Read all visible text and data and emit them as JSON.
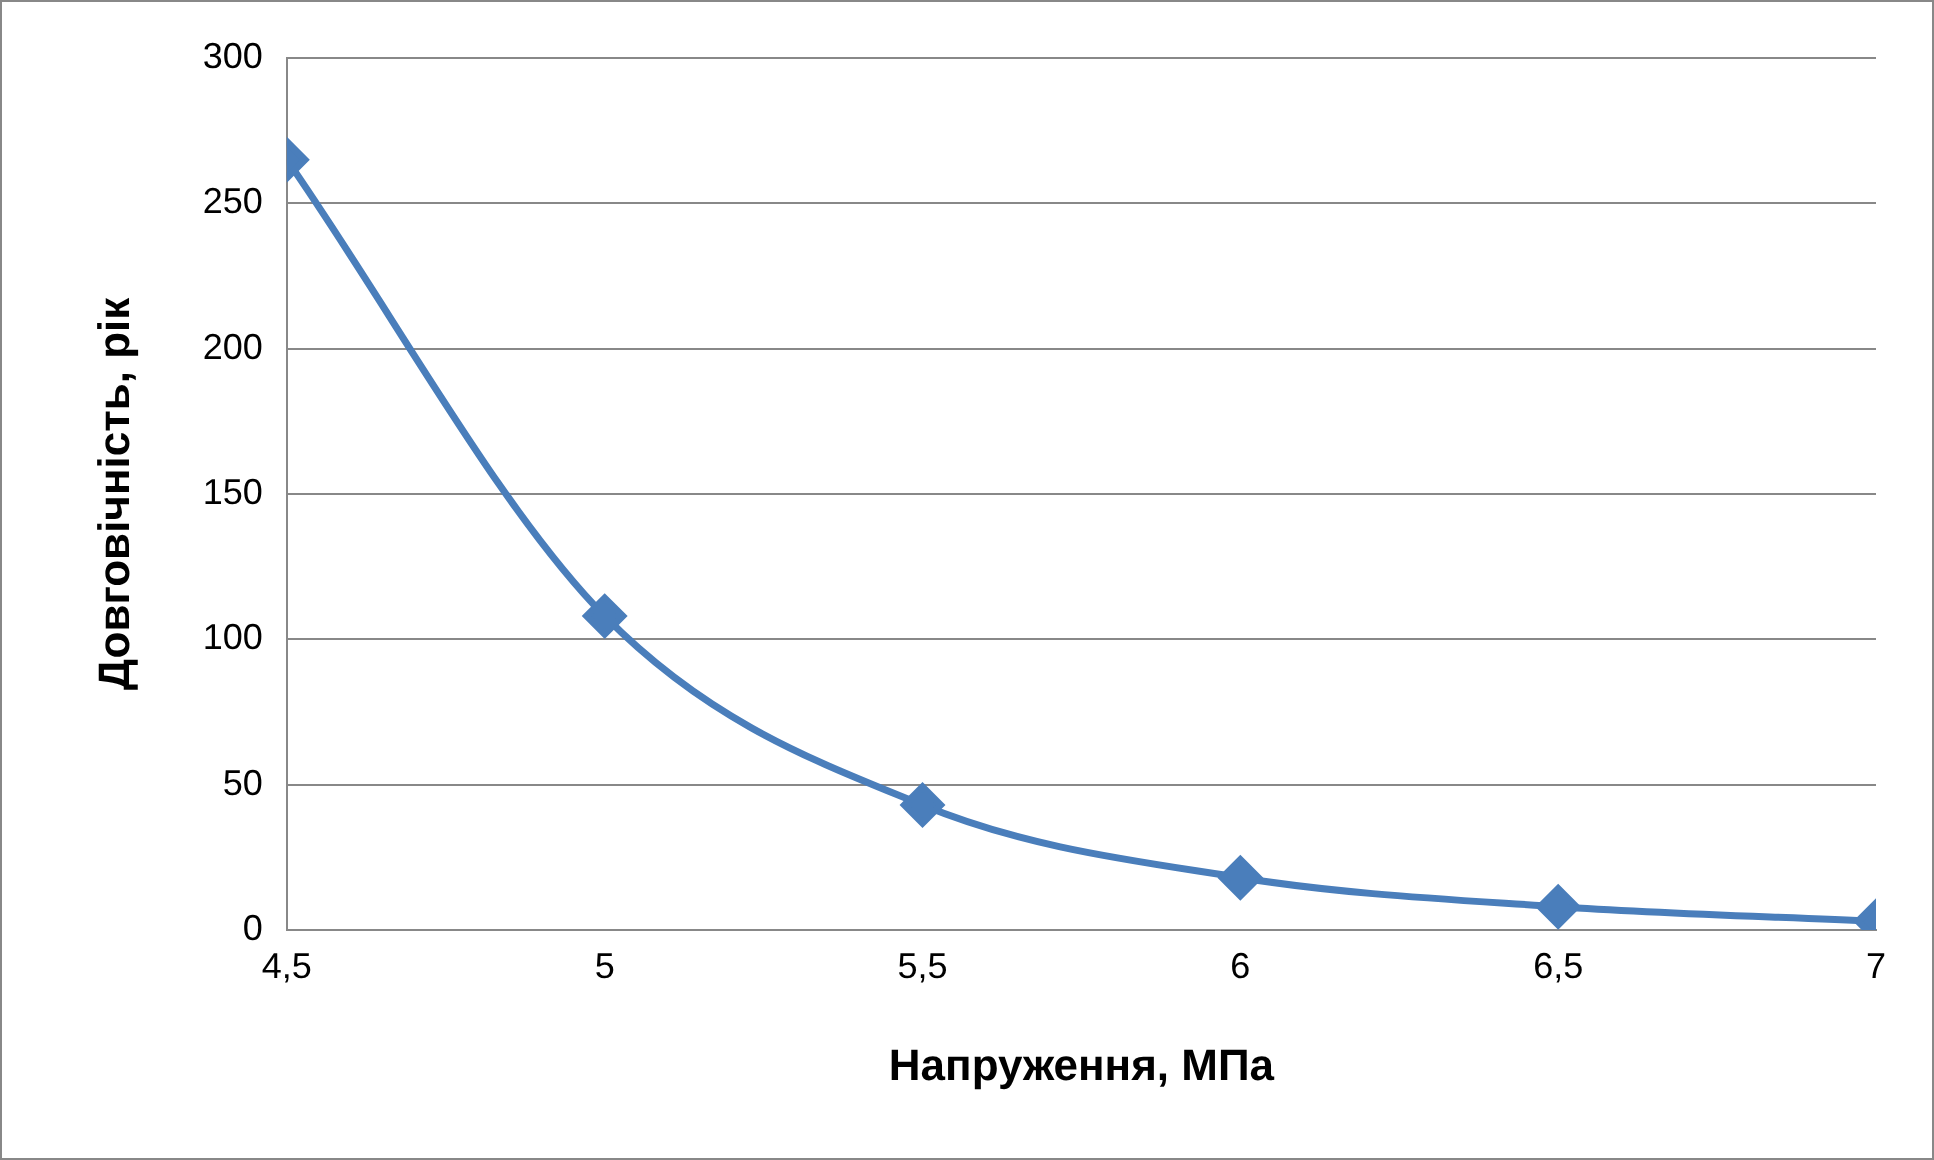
{
  "chart_data": {
    "type": "line",
    "xlabel": "Напруження, МПа",
    "ylabel": "Довговічність, рік",
    "x": [
      4.5,
      5,
      5.5,
      6,
      6.5,
      7
    ],
    "series": [
      {
        "color": "#4a7ebb",
        "values": [
          265,
          108,
          43,
          18,
          8,
          3
        ]
      }
    ],
    "xlim": [
      4.5,
      7
    ],
    "xticks": [
      {
        "value": 4.5,
        "label": "4,5"
      },
      5,
      {
        "value": 5.5,
        "label": "5,5"
      },
      6,
      {
        "value": 6.5,
        "label": "6,5"
      },
      7
    ],
    "ylim": [
      0,
      300
    ],
    "yticks": [
      0,
      50,
      100,
      150,
      200,
      250,
      300
    ],
    "grid": "y",
    "legend": false,
    "marker": "diamond",
    "line_style": "solid"
  }
}
